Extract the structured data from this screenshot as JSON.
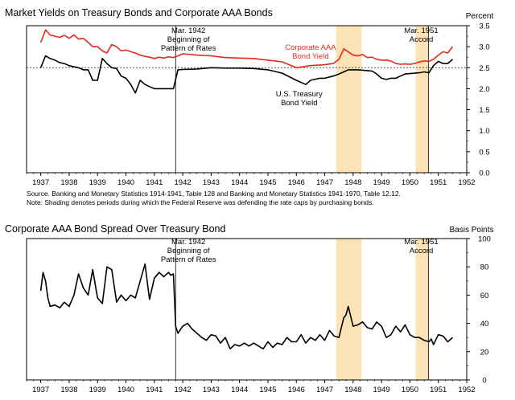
{
  "source_note": {
    "line1": "Source. Banking and Monetary Statistics 1914-1941, Table 128 and Banking and Monetary Statistics 1941-1970, Table 12.12.",
    "line2": "Note: Shading denotes periods during which the Federal Reserve was defending the rate caps by purchasing bonds."
  },
  "colors": {
    "corporate": "#e8281e",
    "treasury": "#000000",
    "shading": "#fbe3b5",
    "dotted": "#555555"
  },
  "chart_data": [
    {
      "type": "line",
      "title": "Market Yields on Treasury Bonds and Corporate AAA Bonds",
      "ylabel": "Percent",
      "xlim": [
        1936.5,
        1952
      ],
      "ylim": [
        0,
        3.5
      ],
      "x_ticks": [
        1937,
        1938,
        1939,
        1940,
        1941,
        1942,
        1943,
        1944,
        1945,
        1946,
        1947,
        1948,
        1949,
        1950,
        1951,
        1952
      ],
      "y_ticks": [
        0.0,
        0.5,
        1.0,
        1.5,
        2.0,
        2.5,
        3.0,
        3.5
      ],
      "reference_line": 2.5,
      "shaded_periods": [
        [
          1947.4,
          1948.3
        ],
        [
          1950.2,
          1950.65
        ]
      ],
      "event_lines": [
        1941.75,
        1950.65
      ],
      "annotations": [
        {
          "text": [
            "Mar. 1942",
            "Beginning of",
            "Pattern of Rates"
          ],
          "x": 1942.2,
          "y": 3.33
        },
        {
          "text": [
            "Mar. 1951",
            "Accord"
          ],
          "x": 1950.4,
          "y": 3.33
        },
        {
          "text": [
            "Corporate AAA",
            "Bond Yield"
          ],
          "x": 1946.5,
          "y": 2.93,
          "series": "Corporate AAA Bond Yield"
        },
        {
          "text": [
            "U.S. Treasury",
            "Bond Yield"
          ],
          "x": 1946.1,
          "y": 1.82,
          "series": "U.S. Treasury Bond Yield"
        }
      ],
      "series": [
        {
          "name": "Corporate AAA Bond Yield",
          "x": [
            1937.0,
            1937.17,
            1937.33,
            1937.5,
            1937.67,
            1937.83,
            1938.0,
            1938.17,
            1938.33,
            1938.5,
            1938.67,
            1938.83,
            1939.0,
            1939.17,
            1939.33,
            1939.5,
            1939.67,
            1939.83,
            1940.0,
            1940.17,
            1940.33,
            1940.5,
            1940.67,
            1940.83,
            1941.0,
            1941.17,
            1941.33,
            1941.5,
            1941.67,
            1941.83,
            1942.0,
            1942.5,
            1943.0,
            1943.5,
            1944.0,
            1944.5,
            1945.0,
            1945.5,
            1946.0,
            1946.5,
            1947.0,
            1947.3,
            1947.5,
            1947.67,
            1947.83,
            1948.0,
            1948.17,
            1948.33,
            1948.5,
            1948.67,
            1948.83,
            1949.0,
            1949.17,
            1949.33,
            1949.5,
            1949.67,
            1949.83,
            1950.0,
            1950.17,
            1950.33,
            1950.5,
            1950.67,
            1950.83,
            1951.0,
            1951.17,
            1951.33,
            1951.5
          ],
          "values": [
            3.1,
            3.4,
            3.28,
            3.25,
            3.22,
            3.27,
            3.2,
            3.28,
            3.18,
            3.2,
            3.1,
            3.0,
            3.0,
            2.9,
            2.85,
            3.05,
            3.0,
            2.9,
            2.92,
            2.88,
            2.85,
            2.8,
            2.77,
            2.75,
            2.72,
            2.75,
            2.73,
            2.76,
            2.74,
            2.78,
            2.83,
            2.8,
            2.78,
            2.74,
            2.73,
            2.72,
            2.68,
            2.64,
            2.5,
            2.55,
            2.57,
            2.6,
            2.7,
            2.95,
            2.88,
            2.8,
            2.78,
            2.82,
            2.74,
            2.75,
            2.7,
            2.68,
            2.68,
            2.66,
            2.6,
            2.58,
            2.59,
            2.58,
            2.6,
            2.64,
            2.66,
            2.65,
            2.7,
            2.8,
            2.88,
            2.85,
            3.0
          ]
        },
        {
          "name": "U.S. Treasury Bond Yield",
          "x": [
            1937.0,
            1937.17,
            1937.33,
            1937.5,
            1937.67,
            1937.83,
            1938.0,
            1938.17,
            1938.33,
            1938.5,
            1938.67,
            1938.83,
            1939.0,
            1939.17,
            1939.33,
            1939.5,
            1939.67,
            1939.83,
            1940.0,
            1940.17,
            1940.33,
            1940.5,
            1940.67,
            1940.83,
            1941.0,
            1941.17,
            1941.33,
            1941.5,
            1941.67,
            1941.83,
            1942.0,
            1942.5,
            1943.0,
            1943.5,
            1944.0,
            1944.5,
            1945.0,
            1945.5,
            1946.0,
            1946.33,
            1946.5,
            1946.83,
            1947.0,
            1947.3,
            1947.5,
            1947.67,
            1947.83,
            1948.0,
            1948.17,
            1948.33,
            1948.5,
            1948.67,
            1948.83,
            1949.0,
            1949.17,
            1949.33,
            1949.5,
            1949.67,
            1949.83,
            1950.0,
            1950.17,
            1950.33,
            1950.5,
            1950.67,
            1950.83,
            1951.0,
            1951.17,
            1951.33,
            1951.5
          ],
          "values": [
            2.5,
            2.78,
            2.72,
            2.68,
            2.62,
            2.6,
            2.55,
            2.52,
            2.5,
            2.45,
            2.45,
            2.2,
            2.2,
            2.72,
            2.6,
            2.5,
            2.48,
            2.3,
            2.25,
            2.1,
            1.9,
            2.2,
            2.1,
            2.05,
            2.0,
            2.0,
            2.0,
            2.0,
            2.0,
            2.45,
            2.46,
            2.47,
            2.5,
            2.49,
            2.49,
            2.48,
            2.45,
            2.37,
            2.2,
            2.1,
            2.2,
            2.25,
            2.25,
            2.3,
            2.35,
            2.4,
            2.45,
            2.45,
            2.45,
            2.44,
            2.43,
            2.42,
            2.35,
            2.25,
            2.22,
            2.25,
            2.25,
            2.3,
            2.35,
            2.36,
            2.37,
            2.38,
            2.4,
            2.38,
            2.55,
            2.65,
            2.6,
            2.6,
            2.7
          ]
        }
      ]
    },
    {
      "type": "line",
      "title": "Corporate AAA Bond Spread Over Treasury Bond",
      "ylabel": "Basis Points",
      "xlim": [
        1936.5,
        1952
      ],
      "ylim": [
        0,
        100
      ],
      "x_ticks": [
        1937,
        1938,
        1939,
        1940,
        1941,
        1942,
        1943,
        1944,
        1945,
        1946,
        1947,
        1948,
        1949,
        1950,
        1951,
        1952
      ],
      "y_ticks": [
        0,
        20,
        40,
        60,
        80,
        100
      ],
      "shaded_periods": [
        [
          1947.4,
          1948.3
        ],
        [
          1950.2,
          1950.65
        ]
      ],
      "event_lines": [
        1941.75,
        1950.65
      ],
      "annotations": [
        {
          "text": [
            "Mar. 1942",
            "Beginning of",
            "Pattern of Rates"
          ],
          "x": 1942.2,
          "y": 96
        },
        {
          "text": [
            "Mar. 1951",
            "Accord"
          ],
          "x": 1950.4,
          "y": 96
        }
      ],
      "series": [
        {
          "name": "Corporate AAA Bond Spread",
          "x": [
            1937.0,
            1937.08,
            1937.17,
            1937.25,
            1937.33,
            1937.5,
            1937.67,
            1937.83,
            1938.0,
            1938.17,
            1938.33,
            1938.5,
            1938.67,
            1938.83,
            1939.0,
            1939.17,
            1939.33,
            1939.5,
            1939.67,
            1939.83,
            1940.0,
            1940.17,
            1940.33,
            1940.5,
            1940.67,
            1940.83,
            1941.0,
            1941.17,
            1941.33,
            1941.5,
            1941.58,
            1941.67,
            1941.75,
            1941.83,
            1942.0,
            1942.17,
            1942.33,
            1942.5,
            1942.67,
            1942.83,
            1943.0,
            1943.17,
            1943.33,
            1943.5,
            1943.67,
            1943.83,
            1944.0,
            1944.17,
            1944.33,
            1944.5,
            1944.67,
            1944.83,
            1945.0,
            1945.17,
            1945.33,
            1945.5,
            1945.67,
            1945.83,
            1946.0,
            1946.17,
            1946.33,
            1946.5,
            1946.67,
            1946.83,
            1947.0,
            1947.17,
            1947.33,
            1947.5,
            1947.67,
            1947.75,
            1947.83,
            1948.0,
            1948.17,
            1948.33,
            1948.5,
            1948.67,
            1948.83,
            1949.0,
            1949.17,
            1949.33,
            1949.5,
            1949.67,
            1949.83,
            1950.0,
            1950.17,
            1950.33,
            1950.5,
            1950.67,
            1950.75,
            1950.83,
            1951.0,
            1951.17,
            1951.33,
            1951.5
          ],
          "values": [
            63,
            76,
            70,
            58,
            52,
            53,
            51,
            55,
            52,
            60,
            75,
            65,
            60,
            78,
            58,
            54,
            80,
            78,
            55,
            60,
            56,
            60,
            58,
            70,
            82,
            57,
            72,
            76,
            73,
            76,
            74,
            75,
            38,
            33,
            38,
            40,
            36,
            33,
            30,
            28,
            32,
            31,
            26,
            30,
            22,
            25,
            24,
            26,
            24,
            26,
            24,
            22,
            27,
            23,
            26,
            25,
            30,
            27,
            27,
            32,
            26,
            30,
            28,
            32,
            28,
            35,
            31,
            30,
            44,
            46,
            52,
            38,
            39,
            41,
            37,
            36,
            41,
            38,
            30,
            32,
            38,
            34,
            39,
            32,
            30,
            30,
            28,
            27,
            29,
            25,
            32,
            31,
            27,
            30
          ]
        }
      ]
    }
  ]
}
